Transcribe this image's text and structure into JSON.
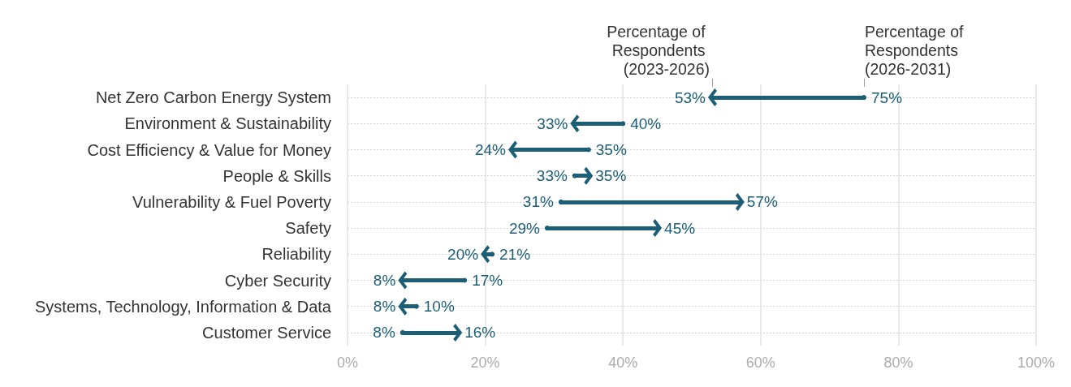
{
  "chart_data": {
    "type": "scatter",
    "orientation": "horizontal",
    "categories": [
      "Net Zero Carbon Energy System",
      "Environment & Sustainability",
      "Cost Efficiency & Value for Money",
      "People & Skills",
      "Vulnerability & Fuel Poverty",
      "Safety",
      "Reliability",
      "Cyber Security",
      "Systems, Technology, Information & Data",
      "Customer Service"
    ],
    "series": [
      {
        "name": "Percentage of Respondents (2023-2026)",
        "color": "#1b5e76",
        "marker": "triangle",
        "values": [
          53,
          33,
          24,
          35,
          57,
          45,
          20,
          8,
          8,
          16
        ],
        "value_labels": [
          "53%",
          "33%",
          "24%",
          "35%",
          "57%",
          "45%",
          "20%",
          "8%",
          "8%",
          "16%"
        ]
      },
      {
        "name": "Percentage of Respondents (2026-2031)",
        "color": "#1b5e76",
        "marker": "circle",
        "values": [
          75,
          40,
          35,
          33,
          31,
          29,
          21,
          17,
          10,
          8
        ],
        "value_labels": [
          "75%",
          "40%",
          "35%",
          "33%",
          "31%",
          "29%",
          "21%",
          "17%",
          "10%",
          "8%"
        ]
      }
    ],
    "xlim": [
      0,
      100
    ],
    "xticks": [
      {
        "value": 0,
        "label": "0%"
      },
      {
        "value": 20,
        "label": "20%"
      },
      {
        "value": 40,
        "label": "40%"
      },
      {
        "value": 60,
        "label": "60%"
      },
      {
        "value": 80,
        "label": "80%"
      },
      {
        "value": 100,
        "label": "100%"
      }
    ],
    "grid": true,
    "legend": false
  }
}
